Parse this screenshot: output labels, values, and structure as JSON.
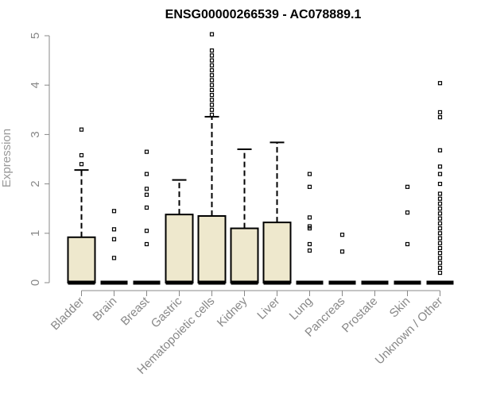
{
  "chart_data": {
    "type": "boxplot",
    "title": "ENSG00000266539 - AC078889.1",
    "xlabel": "",
    "ylabel": "Expression",
    "ylim": [
      0,
      5
    ],
    "yticks": [
      0,
      1,
      2,
      3,
      4,
      5
    ],
    "grid": false,
    "legend": "none",
    "colors": {
      "box_fill": "#EEE8CD",
      "box_stroke": "#000000",
      "axis": "#888888",
      "ylabel": "#999999"
    },
    "categories": [
      "Bladder",
      "Brain",
      "Breast",
      "Gastric",
      "Hematopoietic cells",
      "Kidney",
      "Liver",
      "Lung",
      "Pancreas",
      "Prostate",
      "Skin",
      "Unknown / Other"
    ],
    "boxes": [
      {
        "category": "Bladder",
        "min": 0,
        "q1": 0,
        "median": 0,
        "q3": 0.92,
        "whisker_high": 2.28,
        "outliers": [
          2.4,
          2.58,
          3.1
        ]
      },
      {
        "category": "Brain",
        "min": 0,
        "q1": 0,
        "median": 0,
        "q3": 0,
        "whisker_high": 0,
        "outliers": [
          0.5,
          0.88,
          1.08,
          1.45
        ]
      },
      {
        "category": "Breast",
        "min": 0,
        "q1": 0,
        "median": 0,
        "q3": 0,
        "whisker_high": 0,
        "outliers": [
          0.78,
          1.05,
          1.52,
          1.78,
          1.9,
          2.2,
          2.65
        ]
      },
      {
        "category": "Gastric",
        "min": 0,
        "q1": 0,
        "median": 0,
        "q3": 1.38,
        "whisker_high": 2.08,
        "outliers": []
      },
      {
        "category": "Hematopoietic cells",
        "min": 0,
        "q1": 0,
        "median": 0,
        "q3": 1.35,
        "whisker_high": 3.36,
        "outliers": [
          3.4,
          3.5,
          3.6,
          3.7,
          3.8,
          3.9,
          4.0,
          4.1,
          4.2,
          4.3,
          4.4,
          4.5,
          4.6,
          4.7,
          5.03
        ]
      },
      {
        "category": "Kidney",
        "min": 0,
        "q1": 0,
        "median": 0,
        "q3": 1.1,
        "whisker_high": 2.7,
        "outliers": []
      },
      {
        "category": "Liver",
        "min": 0,
        "q1": 0,
        "median": 0,
        "q3": 1.22,
        "whisker_high": 2.84,
        "outliers": []
      },
      {
        "category": "Lung",
        "min": 0,
        "q1": 0,
        "median": 0,
        "q3": 0,
        "whisker_high": 0,
        "outliers": [
          0.65,
          0.78,
          1.1,
          1.14,
          1.32,
          1.94,
          2.2
        ]
      },
      {
        "category": "Pancreas",
        "min": 0,
        "q1": 0,
        "median": 0,
        "q3": 0,
        "whisker_high": 0,
        "outliers": [
          0.63,
          0.97
        ]
      },
      {
        "category": "Prostate",
        "min": 0,
        "q1": 0,
        "median": 0,
        "q3": 0,
        "whisker_high": 0,
        "outliers": []
      },
      {
        "category": "Skin",
        "min": 0,
        "q1": 0,
        "median": 0,
        "q3": 0,
        "whisker_high": 0,
        "outliers": [
          0.78,
          1.42,
          1.94
        ]
      },
      {
        "category": "Unknown / Other",
        "min": 0,
        "q1": 0,
        "median": 0,
        "q3": 0,
        "whisker_high": 0,
        "outliers": [
          0.2,
          0.3,
          0.4,
          0.5,
          0.6,
          0.7,
          0.8,
          0.9,
          1.0,
          1.1,
          1.2,
          1.3,
          1.4,
          1.5,
          1.6,
          1.7,
          1.8,
          2.0,
          2.2,
          2.35,
          2.68,
          3.35,
          3.45,
          4.04
        ]
      }
    ]
  }
}
